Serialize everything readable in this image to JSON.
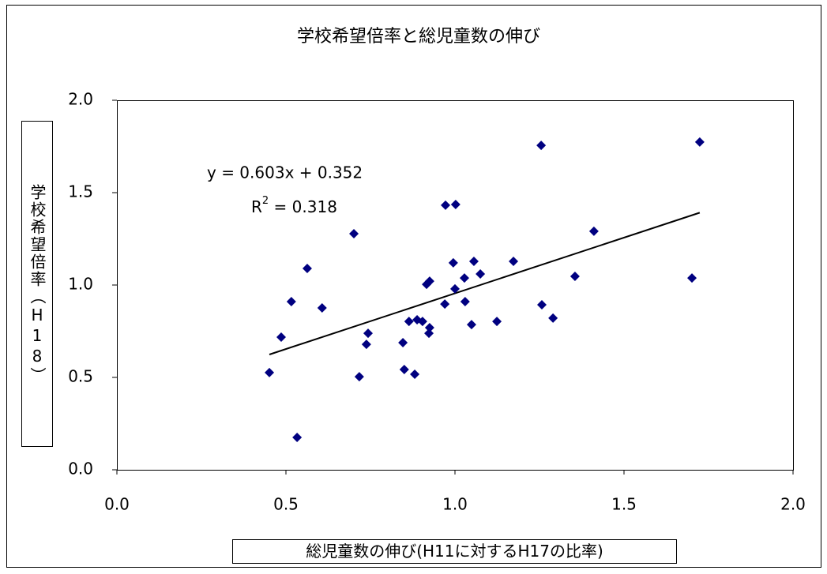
{
  "chart_data": {
    "type": "scatter",
    "title": "学校希望倍率と総児童数の伸び",
    "x_label": "総児童数の伸び(H11に対するH17の比率)",
    "y_label": "学校希望倍率（H18）",
    "color": "#000080",
    "x": [
      0.451,
      0.486,
      0.516,
      0.533,
      0.563,
      0.607,
      0.701,
      0.717,
      0.738,
      0.743,
      0.846,
      0.85,
      0.864,
      0.881,
      0.888,
      0.904,
      0.916,
      0.925,
      0.925,
      0.923,
      0.972,
      1.002,
      0.97,
      0.995,
      1.0,
      1.028,
      1.03,
      1.049,
      1.056,
      1.075,
      1.124,
      1.173,
      1.255,
      1.257,
      1.29,
      1.355,
      1.411,
      1.701,
      1.724
    ],
    "values": [
      0.526,
      0.718,
      0.91,
      0.175,
      1.09,
      0.876,
      1.278,
      0.504,
      0.679,
      0.739,
      0.688,
      0.543,
      0.803,
      0.517,
      0.812,
      0.803,
      1.004,
      1.021,
      0.769,
      0.739,
      1.432,
      1.436,
      0.897,
      1.12,
      0.979,
      1.038,
      0.91,
      0.786,
      1.128,
      1.06,
      0.803,
      1.128,
      1.756,
      0.893,
      0.821,
      1.047,
      1.291,
      1.038,
      1.774
    ],
    "trendline": {
      "slope": 0.603,
      "intercept": 0.352,
      "equation": "y = 0.603x + 0.352",
      "r_squared": {
        "base": "R",
        "exponent": "2",
        "text": " = 0.318"
      }
    },
    "xlim": [
      0,
      2
    ],
    "ylim": [
      0,
      2
    ],
    "xticks": [
      {
        "value": 0,
        "label": "0.0"
      },
      {
        "value": 0.5,
        "label": "0.5"
      },
      {
        "value": 1,
        "label": "1.0"
      },
      {
        "value": 1.5,
        "label": "1.5"
      },
      {
        "value": 2,
        "label": "2.0"
      }
    ],
    "yticks": [
      {
        "value": 0,
        "label": "0.0"
      },
      {
        "value": 0.5,
        "label": "0.5"
      },
      {
        "value": 1,
        "label": "1.0"
      },
      {
        "value": 1.5,
        "label": "1.5"
      },
      {
        "value": 2,
        "label": "2.0"
      }
    ]
  }
}
